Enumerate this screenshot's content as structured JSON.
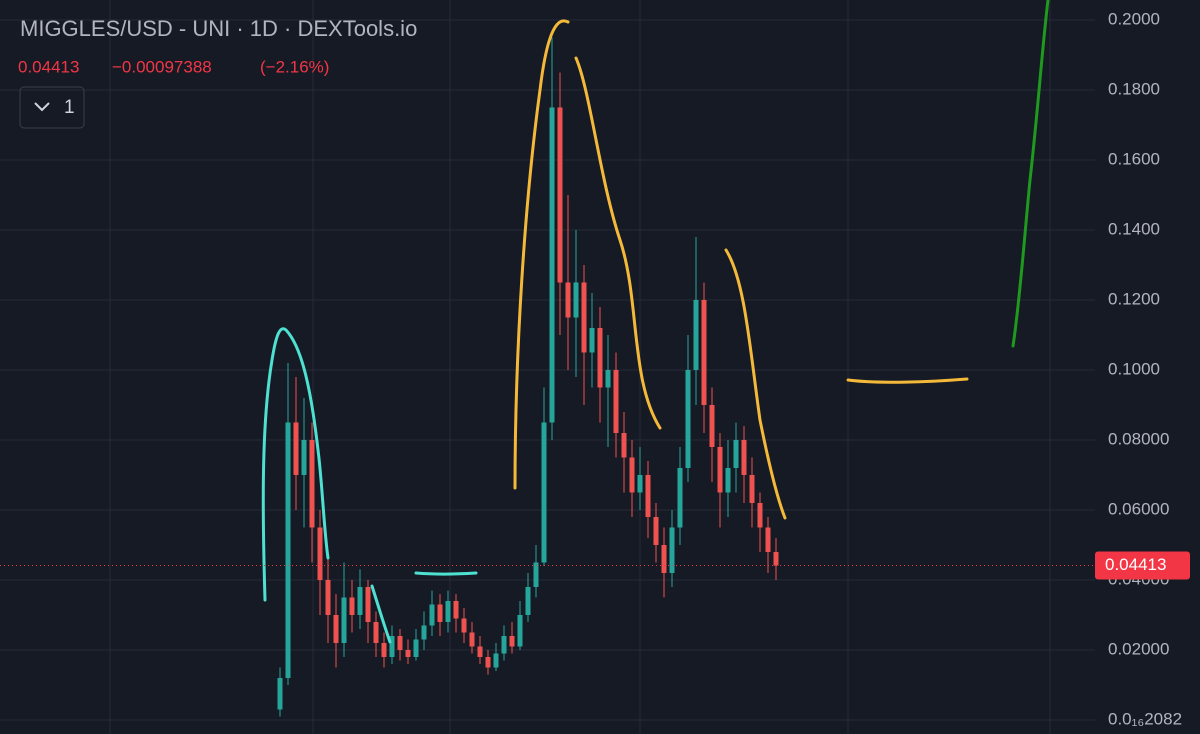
{
  "chart_data": {
    "type": "candlestick",
    "title": "MIGGLES/USD - UNI · 1D · DEXTools.io",
    "last_price": 0.04413,
    "change": "−0.00097388",
    "change_pct": "(−2.16%)",
    "indicator_count": 1,
    "up_color": "#26a69a",
    "down_color": "#ef5350",
    "ylim": [
      -0.004,
      0.2057
    ],
    "yticks": [
      {
        "value": 2.082e-17,
        "label": "0.0₁₆2082"
      },
      {
        "value": 0.02,
        "label": "0.02000"
      },
      {
        "value": 0.04,
        "label": "0.04000"
      },
      {
        "value": 0.06,
        "label": "0.06000"
      },
      {
        "value": 0.08,
        "label": "0.08000"
      },
      {
        "value": 0.1,
        "label": "0.1000"
      },
      {
        "value": 0.12,
        "label": "0.1200"
      },
      {
        "value": 0.14,
        "label": "0.1400"
      },
      {
        "value": 0.16,
        "label": "0.1600"
      },
      {
        "value": 0.18,
        "label": "0.1800"
      },
      {
        "value": 0.2,
        "label": "0.2000"
      }
    ],
    "grid": true,
    "open": [
      0.003,
      0.012,
      0.085,
      0.07,
      0.08,
      0.055,
      0.04,
      0.03,
      0.022,
      0.035,
      0.03,
      0.038,
      0.028,
      0.022,
      0.018,
      0.024,
      0.02,
      0.018,
      0.023,
      0.027,
      0.033,
      0.028,
      0.034,
      0.029,
      0.025,
      0.021,
      0.018,
      0.015,
      0.019,
      0.024,
      0.021,
      0.03,
      0.038,
      0.045,
      0.085,
      0.175,
      0.125,
      0.115,
      0.125,
      0.105,
      0.112,
      0.095,
      0.1,
      0.082,
      0.075,
      0.065,
      0.07,
      0.058,
      0.05,
      0.042,
      0.055,
      0.072,
      0.1,
      0.12,
      0.09,
      0.078,
      0.065,
      0.072,
      0.08,
      0.07,
      0.062,
      0.055,
      0.048
    ],
    "high": [
      0.015,
      0.102,
      0.098,
      0.092,
      0.085,
      0.06,
      0.048,
      0.036,
      0.045,
      0.04,
      0.043,
      0.04,
      0.031,
      0.025,
      0.027,
      0.026,
      0.023,
      0.026,
      0.031,
      0.037,
      0.036,
      0.037,
      0.036,
      0.032,
      0.028,
      0.024,
      0.02,
      0.022,
      0.027,
      0.028,
      0.034,
      0.042,
      0.05,
      0.095,
      0.195,
      0.185,
      0.15,
      0.14,
      0.13,
      0.122,
      0.118,
      0.11,
      0.105,
      0.088,
      0.08,
      0.078,
      0.074,
      0.062,
      0.055,
      0.06,
      0.078,
      0.11,
      0.138,
      0.125,
      0.095,
      0.082,
      0.08,
      0.085,
      0.084,
      0.075,
      0.065,
      0.058,
      0.052
    ],
    "low": [
      0.001,
      0.01,
      0.06,
      0.055,
      0.045,
      0.03,
      0.022,
      0.015,
      0.018,
      0.025,
      0.026,
      0.022,
      0.018,
      0.015,
      0.016,
      0.017,
      0.016,
      0.017,
      0.02,
      0.024,
      0.024,
      0.025,
      0.025,
      0.022,
      0.019,
      0.016,
      0.013,
      0.014,
      0.017,
      0.019,
      0.02,
      0.028,
      0.035,
      0.044,
      0.08,
      0.11,
      0.1,
      0.098,
      0.09,
      0.095,
      0.085,
      0.078,
      0.075,
      0.065,
      0.058,
      0.06,
      0.052,
      0.045,
      0.035,
      0.038,
      0.05,
      0.068,
      0.09,
      0.082,
      0.068,
      0.055,
      0.058,
      0.065,
      0.062,
      0.055,
      0.048,
      0.042,
      0.04
    ],
    "close": [
      0.012,
      0.085,
      0.07,
      0.08,
      0.055,
      0.04,
      0.03,
      0.022,
      0.035,
      0.03,
      0.038,
      0.028,
      0.022,
      0.018,
      0.024,
      0.02,
      0.018,
      0.023,
      0.027,
      0.033,
      0.028,
      0.034,
      0.029,
      0.025,
      0.021,
      0.018,
      0.015,
      0.019,
      0.024,
      0.021,
      0.03,
      0.038,
      0.045,
      0.085,
      0.175,
      0.125,
      0.115,
      0.125,
      0.105,
      0.112,
      0.095,
      0.1,
      0.082,
      0.075,
      0.065,
      0.07,
      0.058,
      0.05,
      0.042,
      0.055,
      0.072,
      0.1,
      0.12,
      0.09,
      0.078,
      0.065,
      0.072,
      0.08,
      0.07,
      0.062,
      0.055,
      0.048,
      0.04413
    ]
  }
}
